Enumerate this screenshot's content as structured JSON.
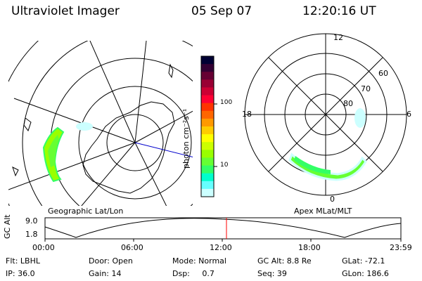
{
  "header": {
    "instrument": "Ultraviolet Imager",
    "date": "05 Sep 07",
    "time": "12:20:16 UT"
  },
  "left_panel": {
    "label": "Geographic Lat/Lon"
  },
  "right_panel": {
    "label": "Apex MLat/MLT",
    "lat_labels": [
      "60",
      "70",
      "80"
    ],
    "mlt_labels": {
      "top": "12",
      "left": "18",
      "right": "6",
      "bottom": "0"
    }
  },
  "colorbar": {
    "unit_label": "photon cm⁻²s⁻¹",
    "tick_labels": [
      "100",
      "10"
    ],
    "colors": [
      "#000033",
      "#330033",
      "#660033",
      "#990033",
      "#cc0033",
      "#ff0033",
      "#ff3300",
      "#ff6600",
      "#ff9900",
      "#ffcc00",
      "#ffff00",
      "#ccff00",
      "#99ff00",
      "#66ff33",
      "#33ff66",
      "#00ffcc",
      "#66ffff",
      "#ccffff"
    ]
  },
  "altitude_plot": {
    "ylabel": "GC Alt",
    "y_ticks": [
      "9.0",
      "1.8"
    ],
    "x_ticks": [
      "00:00",
      "06:00",
      "12:00",
      "18:00",
      "23:59"
    ],
    "marker_color": "#ff0000"
  },
  "footer": {
    "filter": "Flt: LBHL",
    "door": "Door: Open",
    "mode": "Mode: Normal",
    "gc_alt": "GC Alt: 8.8 Re",
    "glat": "GLat: -72.1",
    "ip": "IP: 36.0",
    "gain": "Gain: 14",
    "dsp": "Dsp:     0.7",
    "seq": "Seq: 39",
    "glon": "GLon: 186.6"
  }
}
